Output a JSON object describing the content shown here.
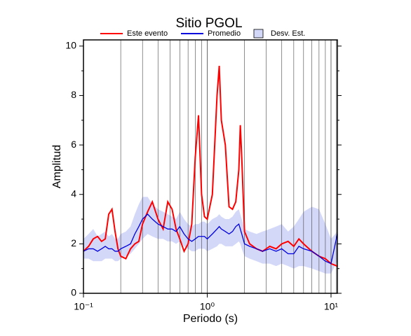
{
  "chart_data": {
    "type": "line",
    "title": "Sitio PGOL",
    "xlabel": "Periodo (s)",
    "ylabel": "Amplitud",
    "xscale": "log",
    "xlim": [
      0.1,
      11.25
    ],
    "ylim": [
      0,
      10.25
    ],
    "xticks": [
      {
        "value": 0.1,
        "label": "10⁻¹"
      },
      {
        "value": 1,
        "label": "10⁰"
      },
      {
        "value": 10,
        "label": "10¹"
      }
    ],
    "xgrid": [
      0.2,
      0.3,
      0.4,
      0.5,
      0.6,
      0.7,
      0.8,
      0.9,
      2,
      3,
      4,
      5,
      6,
      7,
      8,
      9,
      11
    ],
    "yticks": [
      0,
      2,
      4,
      6,
      8,
      10
    ],
    "yminor": [
      1,
      3,
      5,
      7,
      9
    ],
    "x": [
      0.1,
      0.11,
      0.12,
      0.13,
      0.14,
      0.15,
      0.16,
      0.17,
      0.18,
      0.19,
      0.2,
      0.22,
      0.24,
      0.26,
      0.28,
      0.3,
      0.33,
      0.36,
      0.4,
      0.44,
      0.48,
      0.52,
      0.56,
      0.6,
      0.65,
      0.7,
      0.75,
      0.8,
      0.85,
      0.9,
      0.95,
      1.0,
      1.1,
      1.2,
      1.25,
      1.3,
      1.4,
      1.5,
      1.6,
      1.7,
      1.8,
      1.85,
      1.9,
      2.0,
      2.2,
      2.5,
      2.8,
      3.2,
      3.6,
      4,
      4.5,
      5,
      5.5,
      6,
      7,
      8,
      9,
      10,
      11.25
    ],
    "band": {
      "name": "Desv. Est.",
      "color": "#d4d8f8",
      "upper": [
        2.2,
        2.4,
        2.6,
        2.3,
        2.4,
        2.5,
        2.3,
        2.4,
        2.2,
        2.2,
        2.4,
        2.5,
        2.7,
        3.2,
        3.6,
        3.9,
        3.9,
        3.6,
        3.4,
        3.3,
        3.2,
        3.1,
        3.0,
        3.3,
        3.0,
        2.8,
        2.7,
        2.8,
        2.8,
        2.9,
        2.9,
        2.8,
        3.0,
        3.1,
        3.2,
        3.1,
        3.0,
        3.0,
        3.1,
        3.3,
        3.4,
        3.2,
        3.0,
        2.6,
        2.5,
        2.4,
        2.5,
        2.6,
        2.7,
        2.8,
        2.5,
        2.7,
        3.0,
        3.3,
        3.5,
        3.4,
        2.8,
        2.2,
        2.5
      ],
      "lower": [
        1.4,
        1.4,
        1.3,
        1.3,
        1.3,
        1.4,
        1.4,
        1.4,
        1.3,
        1.3,
        1.4,
        1.5,
        1.6,
        1.8,
        2.0,
        2.2,
        2.4,
        2.3,
        2.2,
        2.2,
        2.1,
        2.1,
        2.0,
        2.1,
        1.9,
        1.8,
        1.7,
        1.7,
        1.8,
        1.8,
        1.8,
        1.7,
        1.8,
        1.9,
        2.0,
        2.0,
        1.9,
        1.9,
        1.9,
        2.0,
        2.1,
        2.0,
        1.8,
        1.5,
        1.4,
        1.3,
        1.2,
        1.2,
        1.1,
        1.2,
        1.1,
        1.0,
        1.1,
        1.1,
        1.0,
        0.9,
        0.8,
        0.8,
        1.3
      ]
    },
    "series": [
      {
        "name": "Este evento",
        "color": "#ff0000",
        "values": [
          1.7,
          1.9,
          2.2,
          2.3,
          2.1,
          2.2,
          3.2,
          3.4,
          2.5,
          1.8,
          1.5,
          1.4,
          1.8,
          2.0,
          2.1,
          2.8,
          3.3,
          3.7,
          3.0,
          2.6,
          3.7,
          3.4,
          2.6,
          2.2,
          1.7,
          2.0,
          2.8,
          5.5,
          7.2,
          4.0,
          3.1,
          3.0,
          4.0,
          8.0,
          9.2,
          7.0,
          6.0,
          3.5,
          3.4,
          3.7,
          5.0,
          6.8,
          5.5,
          2.5,
          2.0,
          1.8,
          1.7,
          1.9,
          1.8,
          2.0,
          2.1,
          1.9,
          2.2,
          2.0,
          1.7,
          1.5,
          1.4,
          1.2,
          1.1
        ]
      },
      {
        "name": "Promedio",
        "color": "#0000dd",
        "values": [
          1.7,
          1.8,
          1.8,
          1.7,
          1.8,
          1.9,
          1.8,
          1.8,
          1.7,
          1.7,
          1.8,
          1.9,
          2.0,
          2.4,
          2.7,
          3.0,
          3.2,
          3.0,
          2.8,
          2.7,
          2.6,
          2.6,
          2.5,
          2.7,
          2.4,
          2.2,
          2.1,
          2.2,
          2.3,
          2.3,
          2.3,
          2.2,
          2.4,
          2.6,
          2.7,
          2.6,
          2.5,
          2.4,
          2.5,
          2.7,
          2.8,
          2.6,
          2.4,
          2.0,
          1.9,
          1.8,
          1.7,
          1.8,
          1.7,
          1.8,
          1.6,
          1.6,
          1.9,
          1.8,
          1.7,
          1.5,
          1.3,
          1.2,
          2.4
        ]
      }
    ]
  }
}
